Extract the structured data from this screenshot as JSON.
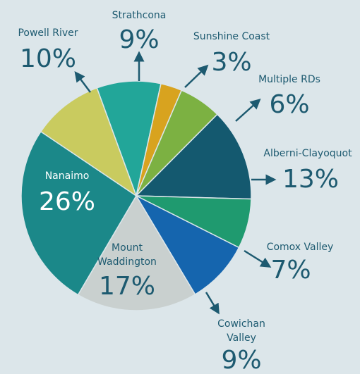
{
  "chart_data": {
    "type": "pie",
    "categories": [
      "Strathcona",
      "Sunshine Coast",
      "Multiple RDs",
      "Alberni-Clayoquot",
      "Comox Valley",
      "Cowichan Valley",
      "Mount Waddington",
      "Nanaimo",
      "Powell River"
    ],
    "values": [
      9,
      3,
      6,
      13,
      7,
      9,
      17,
      26,
      10
    ],
    "value_labels": [
      "9%",
      "3%",
      "6%",
      "13%",
      "7%",
      "9%",
      "17%",
      "26%",
      "10%"
    ],
    "colors": [
      "#22a699",
      "#d8a31f",
      "#7cb142",
      "#14596f",
      "#1f9a6f",
      "#1565ae",
      "#c9d0cf",
      "#1b8889",
      "#c9cb5f"
    ]
  }
}
